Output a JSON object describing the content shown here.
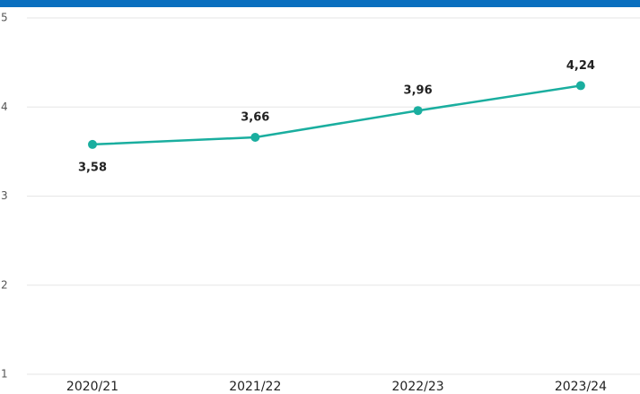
{
  "chart_data": {
    "type": "line",
    "categories": [
      "2020/21",
      "2021/22",
      "2022/23",
      "2023/24"
    ],
    "series": [
      {
        "color": "#1aae9f",
        "values": [
          3.58,
          3.66,
          3.96,
          4.24
        ],
        "value_labels": [
          "3,58",
          "3,66",
          "3,96",
          "4,24"
        ]
      }
    ],
    "ylim": [
      1,
      5
    ],
    "yticks": [
      1,
      2,
      3,
      4,
      5
    ],
    "grid": true
  }
}
